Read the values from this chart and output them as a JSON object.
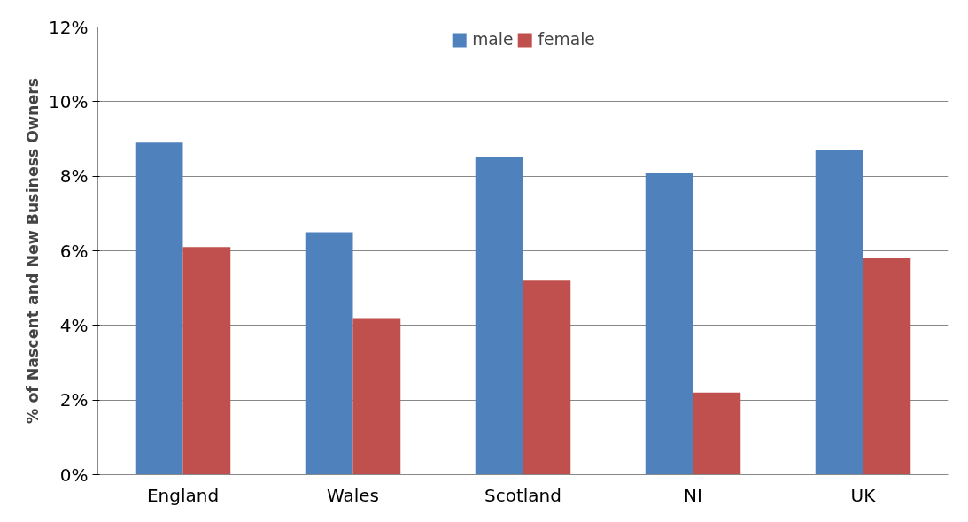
{
  "chart_data": {
    "type": "bar",
    "ylabel": "% of Nascent and New Business Owners",
    "categories": [
      "England",
      "Wales",
      "Scotland",
      "NI",
      "UK"
    ],
    "series": [
      {
        "name": "male",
        "color": "#4f81bd",
        "values": [
          8.9,
          6.5,
          8.5,
          8.1,
          8.7
        ]
      },
      {
        "name": "female",
        "color": "#c0504d",
        "values": [
          6.1,
          4.2,
          5.2,
          2.2,
          5.8
        ]
      }
    ],
    "ylim": [
      0,
      12
    ],
    "yticks": [
      {
        "value": 0,
        "label": "0%"
      },
      {
        "value": 2,
        "label": "2%"
      },
      {
        "value": 4,
        "label": "4%"
      },
      {
        "value": 6,
        "label": "6%"
      },
      {
        "value": 8,
        "label": "8%"
      },
      {
        "value": 10,
        "label": "10%"
      },
      {
        "value": 12,
        "label": "12%"
      }
    ],
    "grid": "y",
    "legend": "top"
  }
}
